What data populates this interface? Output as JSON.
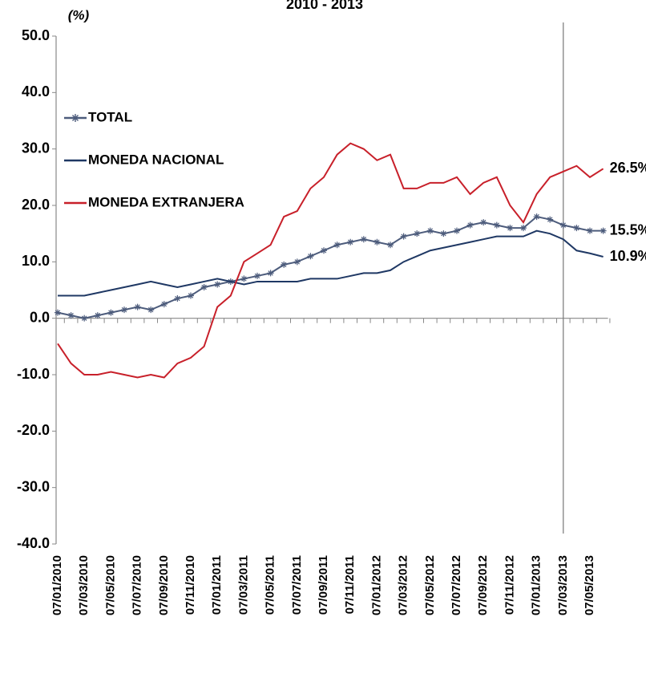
{
  "chart_data": {
    "type": "line",
    "title": "2010 - 2013",
    "y_label": "(%)",
    "categories": [
      "07/01/2010",
      null,
      "07/03/2010",
      null,
      "07/05/2010",
      null,
      "07/07/2010",
      null,
      "07/09/2010",
      null,
      "07/11/2010",
      null,
      "07/01/2011",
      null,
      "07/03/2011",
      null,
      "07/05/2011",
      null,
      "07/07/2011",
      null,
      "07/09/2011",
      null,
      "07/11/2011",
      null,
      "07/01/2012",
      null,
      "07/03/2012",
      null,
      "07/05/2012",
      null,
      "07/07/2012",
      null,
      "07/09/2012",
      null,
      "07/11/2012",
      null,
      "07/01/2013",
      null,
      "07/03/2013",
      null,
      "07/05/2013",
      null
    ],
    "series": [
      {
        "name": "TOTAL",
        "color": "#4d5c7c",
        "marker": "star",
        "values": [
          1.0,
          0.5,
          0.0,
          0.5,
          1.0,
          1.5,
          2.0,
          1.5,
          2.5,
          3.5,
          4.0,
          5.5,
          6.0,
          6.5,
          7.0,
          7.5,
          8.0,
          9.5,
          10.0,
          11.0,
          12.0,
          13.0,
          13.5,
          14.0,
          13.5,
          13.0,
          14.5,
          15.0,
          15.5,
          15.0,
          15.5,
          16.5,
          17.0,
          16.5,
          16.0,
          16.0,
          18.0,
          17.5,
          16.5,
          16.0,
          15.5,
          15.5
        ],
        "value_labels": [
          null,
          null,
          null,
          null,
          null,
          null,
          null,
          null,
          null,
          null,
          null,
          null,
          null,
          null,
          null,
          null,
          null,
          null,
          null,
          null,
          null,
          null,
          null,
          null,
          null,
          null,
          null,
          null,
          null,
          null,
          null,
          null,
          null,
          null,
          null,
          null,
          null,
          null,
          null,
          null,
          null,
          "15.5%"
        ]
      },
      {
        "name": "MONEDA NACIONAL",
        "color": "#1f3864",
        "values": [
          4.0,
          4.0,
          4.0,
          4.5,
          5.0,
          5.5,
          6.0,
          6.5,
          6.0,
          5.5,
          6.0,
          6.5,
          7.0,
          6.5,
          6.0,
          6.5,
          6.5,
          6.5,
          6.5,
          7.0,
          7.0,
          7.0,
          7.5,
          8.0,
          8.0,
          8.5,
          10.0,
          11.0,
          12.0,
          12.5,
          13.0,
          13.5,
          14.0,
          14.5,
          14.5,
          14.5,
          15.5,
          15.0,
          14.0,
          12.0,
          11.5,
          10.9
        ],
        "value_labels": [
          null,
          null,
          null,
          null,
          null,
          null,
          null,
          null,
          null,
          null,
          null,
          null,
          null,
          null,
          null,
          null,
          null,
          null,
          null,
          null,
          null,
          null,
          null,
          null,
          null,
          null,
          null,
          null,
          null,
          null,
          null,
          null,
          null,
          null,
          null,
          null,
          null,
          null,
          null,
          null,
          null,
          "10.9%"
        ]
      },
      {
        "name": "MONEDA EXTRANJERA",
        "color": "#c8202a",
        "values": [
          -4.5,
          -8.0,
          -10.0,
          -10.0,
          -9.5,
          -10.0,
          -10.5,
          -10.0,
          -10.5,
          -8.0,
          -7.0,
          -5.0,
          2.0,
          4.0,
          10.0,
          11.5,
          13.0,
          18.0,
          19.0,
          23.0,
          25.0,
          29.0,
          31.0,
          30.0,
          28.0,
          29.0,
          23.0,
          23.0,
          24.0,
          24.0,
          25.0,
          22.0,
          24.0,
          25.0,
          20.0,
          17.0,
          22.0,
          25.0,
          26.0,
          27.0,
          25.0,
          26.5
        ],
        "value_labels": [
          null,
          null,
          null,
          null,
          null,
          null,
          null,
          null,
          null,
          null,
          null,
          null,
          null,
          null,
          null,
          null,
          null,
          null,
          null,
          null,
          null,
          null,
          null,
          null,
          null,
          null,
          null,
          null,
          null,
          null,
          null,
          null,
          null,
          null,
          null,
          null,
          null,
          null,
          null,
          null,
          null,
          "26.5%"
        ]
      }
    ],
    "ylim": [
      -40,
      50
    ],
    "yticks": [
      {
        "value": -40,
        "label": "-40.0"
      },
      {
        "value": -30,
        "label": "-30.0"
      },
      {
        "value": -20,
        "label": "-20.0"
      },
      {
        "value": -10,
        "label": "-10.0"
      },
      {
        "value": 0,
        "label": "0.0"
      },
      {
        "value": 10,
        "label": "10.0"
      },
      {
        "value": 20,
        "label": "20.0"
      },
      {
        "value": 30,
        "label": "30.0"
      },
      {
        "value": 40,
        "label": "40.0"
      },
      {
        "value": 50,
        "label": "50.0"
      }
    ],
    "vertical_line_at": "07/03/2013",
    "grid": false,
    "legend": "upper left"
  }
}
